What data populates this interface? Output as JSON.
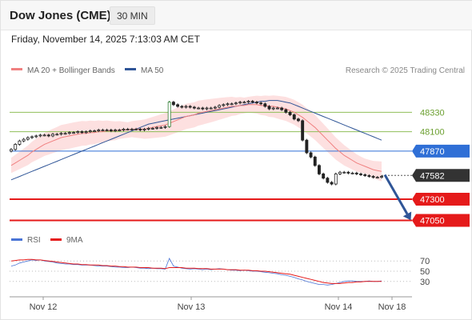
{
  "header": {
    "title": "Dow Jones (CME)",
    "timeframe": "30 MIN",
    "datetime": "Friday, November 14, 2025 7:13:03 AM CET"
  },
  "legend": {
    "ma20": "MA 20 + Bollinger Bands",
    "ma50": "MA 50",
    "credit": "Research © 2025 Trading Central"
  },
  "colors": {
    "ma20": "#f08080",
    "ma50": "#2f5597",
    "bollinger_fill": "#fde0e0",
    "candle": "#222222",
    "resistance": "#8fbf5a",
    "pivot": "#2f6fd6",
    "support": "#e51a1a",
    "current": "#333333",
    "rsi": "#4a74d6",
    "rsi_ma": "#e51a1a",
    "arrow": "#2f5597"
  },
  "chart_data": [
    {
      "type": "candlestick",
      "title": "Dow Jones (CME)",
      "xlabel": "",
      "ylabel": "",
      "x_ticks": [
        "Nov 12",
        "Nov 13",
        "Nov 14",
        "Nov 18"
      ],
      "ylim": [
        46950,
        48750
      ],
      "levels": [
        {
          "label": "48330",
          "value": 48330,
          "kind": "resistance"
        },
        {
          "label": "48100",
          "value": 48100,
          "kind": "resistance"
        },
        {
          "label": "47870",
          "value": 47870,
          "kind": "pivot"
        },
        {
          "label": "47582",
          "value": 47582,
          "kind": "current"
        },
        {
          "label": "47300",
          "value": 47300,
          "kind": "support"
        },
        {
          "label": "47050",
          "value": 47050,
          "kind": "support"
        }
      ],
      "close": [
        47890,
        47950,
        47990,
        48010,
        48030,
        48040,
        48050,
        48060,
        48060,
        48050,
        48070,
        48070,
        48080,
        48080,
        48090,
        48090,
        48100,
        48090,
        48100,
        48110,
        48110,
        48120,
        48120,
        48120,
        48110,
        48120,
        48120,
        48130,
        48130,
        48130,
        48130,
        48120,
        48130,
        48140,
        48140,
        48150,
        48150,
        48160,
        48450,
        48420,
        48400,
        48390,
        48400,
        48390,
        48380,
        48380,
        48370,
        48380,
        48380,
        48390,
        48410,
        48420,
        48430,
        48430,
        48440,
        48450,
        48450,
        48460,
        48450,
        48440,
        48430,
        48400,
        48370,
        48380,
        48380,
        48360,
        48330,
        48300,
        48250,
        48230,
        48000,
        47850,
        47800,
        47700,
        47600,
        47550,
        47500,
        47480,
        47600,
        47620,
        47620,
        47610,
        47610,
        47600,
        47590,
        47580,
        47570,
        47560,
        47560,
        47570
      ],
      "series": [
        {
          "name": "MA 20",
          "values": [
            47700,
            47730,
            47760,
            47790,
            47820,
            47860,
            47890,
            47920,
            47950,
            47970,
            47990,
            48010,
            48030,
            48040,
            48050,
            48060,
            48070,
            48080,
            48080,
            48090,
            48090,
            48100,
            48100,
            48110,
            48110,
            48110,
            48120,
            48120,
            48120,
            48130,
            48130,
            48130,
            48130,
            48140,
            48150,
            48160,
            48170,
            48180,
            48200,
            48220,
            48240,
            48260,
            48280,
            48290,
            48300,
            48320,
            48330,
            48340,
            48350,
            48360,
            48370,
            48380,
            48390,
            48400,
            48400,
            48410,
            48410,
            48420,
            48420,
            48420,
            48410,
            48410,
            48400,
            48400,
            48390,
            48380,
            48370,
            48350,
            48330,
            48300,
            48270,
            48230,
            48190,
            48150,
            48100,
            48050,
            48000,
            47950,
            47900,
            47860,
            47820,
            47790,
            47760,
            47730,
            47710,
            47690,
            47670,
            47650,
            47640,
            47630
          ]
        },
        {
          "name": "MA 50",
          "values": [
            47530,
            47550,
            47570,
            47590,
            47610,
            47630,
            47650,
            47670,
            47690,
            47710,
            47730,
            47750,
            47770,
            47790,
            47810,
            47830,
            47850,
            47870,
            47890,
            47910,
            47930,
            47950,
            47970,
            47990,
            48010,
            48030,
            48050,
            48070,
            48090,
            48110,
            48130,
            48150,
            48170,
            48190,
            48200,
            48210,
            48220,
            48230,
            48240,
            48250,
            48260,
            48270,
            48280,
            48290,
            48300,
            48310,
            48320,
            48330,
            48340,
            48350,
            48360,
            48370,
            48380,
            48390,
            48400,
            48410,
            48420,
            48430,
            48440,
            48450,
            48460,
            48460,
            48470,
            48470,
            48470,
            48460,
            48450,
            48440,
            48420,
            48400,
            48380,
            48360,
            48340,
            48320,
            48300,
            48280,
            48260,
            48240,
            48220,
            48200,
            48180,
            48160,
            48140,
            48120,
            48100,
            48080,
            48060,
            48040,
            48020,
            48000
          ]
        }
      ]
    },
    {
      "type": "line",
      "title": "",
      "xlabel": "",
      "ylabel": "",
      "ylim": [
        0,
        100
      ],
      "y_ticks": [
        70,
        50,
        30
      ],
      "series": [
        {
          "name": "RSI",
          "values": [
            60,
            62,
            66,
            68,
            70,
            72,
            71,
            72,
            70,
            69,
            68,
            66,
            65,
            64,
            64,
            63,
            63,
            62,
            62,
            62,
            61,
            60,
            60,
            60,
            59,
            58,
            58,
            57,
            57,
            58,
            57,
            56,
            56,
            55,
            56,
            55,
            55,
            54,
            75,
            60,
            58,
            56,
            55,
            54,
            55,
            54,
            53,
            54,
            53,
            54,
            55,
            54,
            53,
            52,
            52,
            51,
            52,
            51,
            50,
            50,
            49,
            48,
            47,
            46,
            45,
            43,
            42,
            40,
            38,
            35,
            33,
            30,
            28,
            26,
            24,
            24,
            23,
            24,
            26,
            28,
            30,
            31,
            31,
            30,
            30,
            30,
            31,
            30,
            30,
            31
          ]
        },
        {
          "name": "9MA",
          "values": [
            70,
            71,
            72,
            72,
            73,
            73,
            72,
            72,
            71,
            70,
            69,
            68,
            67,
            66,
            65,
            64,
            64,
            63,
            63,
            62,
            62,
            62,
            61,
            61,
            60,
            60,
            59,
            59,
            58,
            58,
            58,
            57,
            57,
            57,
            56,
            56,
            56,
            55,
            57,
            57,
            57,
            57,
            56,
            56,
            56,
            55,
            55,
            55,
            54,
            54,
            54,
            54,
            53,
            53,
            53,
            52,
            52,
            52,
            51,
            51,
            50,
            50,
            49,
            48,
            47,
            46,
            45,
            44,
            42,
            40,
            38,
            36,
            34,
            32,
            30,
            28,
            27,
            26,
            26,
            26,
            27,
            28,
            28,
            29,
            29,
            30,
            30,
            30,
            30,
            30
          ]
        }
      ]
    }
  ]
}
